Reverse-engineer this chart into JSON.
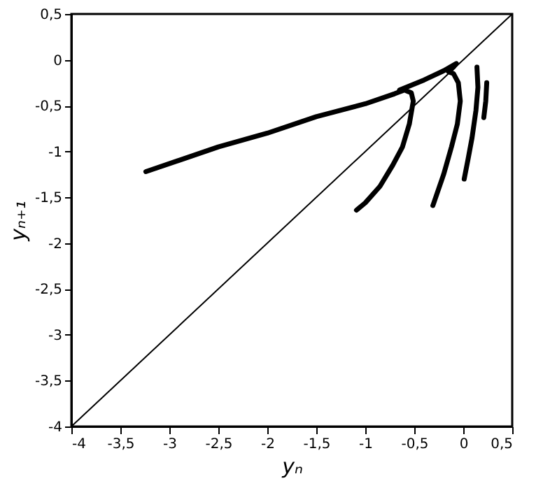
{
  "chart_data": {
    "type": "line",
    "xlabel": "yₙ",
    "ylabel": "yₙ₊₁",
    "xlim": [
      -4,
      0.5
    ],
    "ylim": [
      -4,
      0.5
    ],
    "xticks": [
      -4,
      {
        "value": -3.5,
        "label": "-3,5"
      },
      -3,
      {
        "value": -2.5,
        "label": "-2,5"
      },
      -2,
      {
        "value": -1.5,
        "label": "-1,5"
      },
      -1,
      {
        "value": -0.5,
        "label": "-0,5"
      },
      0,
      {
        "value": 0.5,
        "label": "0,5"
      }
    ],
    "yticks": [
      -4,
      {
        "value": -3.5,
        "label": "-3,5"
      },
      -3,
      {
        "value": -2.5,
        "label": "-2,5"
      },
      -2,
      {
        "value": -1.5,
        "label": "-1,5"
      },
      -1,
      {
        "value": -0.5,
        "label": "-0,5"
      },
      0,
      {
        "value": 0.5,
        "label": "0,5"
      }
    ],
    "grid": false,
    "marker": "none",
    "line_style": "solid",
    "series": [
      {
        "color": "#000000",
        "x": [
          -3.24,
          -2.5,
          -2.0,
          -1.5,
          -1.0,
          -0.7,
          -0.6,
          -0.53,
          -0.51,
          -0.55,
          -0.62,
          -0.72,
          -0.85,
          -1.0,
          -1.09
        ],
        "values": [
          -1.22,
          -0.95,
          -0.8,
          -0.62,
          -0.48,
          -0.37,
          -0.33,
          -0.36,
          -0.45,
          -0.7,
          -0.95,
          -1.15,
          -1.38,
          -1.56,
          -1.64
        ]
      },
      {
        "color": "#000000",
        "x": [
          -0.65,
          -0.4,
          -0.2,
          -0.07,
          -0.1,
          -0.15,
          -0.1,
          -0.05,
          -0.03,
          -0.06,
          -0.12,
          -0.2,
          -0.31
        ],
        "values": [
          -0.33,
          -0.22,
          -0.12,
          -0.04,
          -0.08,
          -0.13,
          -0.15,
          -0.25,
          -0.45,
          -0.7,
          -0.95,
          -1.25,
          -1.59
        ]
      },
      {
        "color": "#000000",
        "x": [
          0.14,
          0.15,
          0.13,
          0.09,
          0.05,
          0.01
        ],
        "values": [
          -0.08,
          -0.3,
          -0.55,
          -0.85,
          -1.08,
          -1.3
        ]
      },
      {
        "color": "#000000",
        "x": [
          0.24,
          0.23,
          0.21
        ],
        "values": [
          -0.25,
          -0.45,
          -0.63
        ]
      },
      {
        "type": "line",
        "color": "#000000",
        "x": [
          -4,
          0.5
        ],
        "values": [
          -4,
          0.5
        ]
      }
    ]
  }
}
